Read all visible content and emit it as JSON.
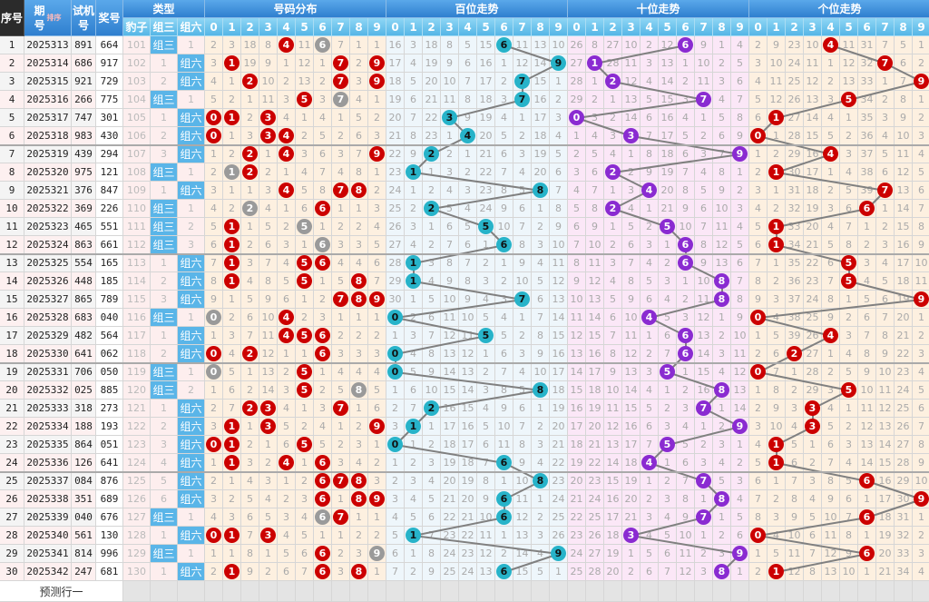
{
  "header": {
    "seq": "序号",
    "issue_top": "期",
    "issue_bottom": "号",
    "sort": "排序",
    "test_top": "试机",
    "test_bottom": "号",
    "prize": "奖号",
    "type_group": "类型",
    "type_cols": [
      "豹子",
      "组三",
      "组六"
    ],
    "sections": [
      "号码分布",
      "百位走势",
      "十位走势",
      "个位走势"
    ],
    "digits": [
      "0",
      "1",
      "2",
      "3",
      "4",
      "5",
      "6",
      "7",
      "8",
      "9"
    ]
  },
  "type_labels": {
    "zusan": "组三",
    "zuliu": "组六"
  },
  "rows": [
    {
      "seq": "1",
      "issue": "2025313",
      "test": "891",
      "prize": "664"
    },
    {
      "seq": "2",
      "issue": "2025314",
      "test": "686",
      "prize": "917"
    },
    {
      "seq": "3",
      "issue": "2025315",
      "test": "921",
      "prize": "729"
    },
    {
      "seq": "4",
      "issue": "2025316",
      "test": "266",
      "prize": "775"
    },
    {
      "seq": "5",
      "issue": "2025317",
      "test": "747",
      "prize": "301"
    },
    {
      "seq": "6",
      "issue": "2025318",
      "test": "983",
      "prize": "430"
    },
    {
      "seq": "7",
      "issue": "2025319",
      "test": "439",
      "prize": "294"
    },
    {
      "seq": "8",
      "issue": "2025320",
      "test": "975",
      "prize": "121"
    },
    {
      "seq": "9",
      "issue": "2025321",
      "test": "376",
      "prize": "847"
    },
    {
      "seq": "10",
      "issue": "2025322",
      "test": "369",
      "prize": "226"
    },
    {
      "seq": "11",
      "issue": "2025323",
      "test": "465",
      "prize": "551"
    },
    {
      "seq": "12",
      "issue": "2025324",
      "test": "863",
      "prize": "661"
    },
    {
      "seq": "13",
      "issue": "2025325",
      "test": "554",
      "prize": "165"
    },
    {
      "seq": "14",
      "issue": "2025326",
      "test": "448",
      "prize": "185"
    },
    {
      "seq": "15",
      "issue": "2025327",
      "test": "865",
      "prize": "789"
    },
    {
      "seq": "16",
      "issue": "2025328",
      "test": "683",
      "prize": "040"
    },
    {
      "seq": "17",
      "issue": "2025329",
      "test": "482",
      "prize": "564"
    },
    {
      "seq": "18",
      "issue": "2025330",
      "test": "641",
      "prize": "062"
    },
    {
      "seq": "19",
      "issue": "2025331",
      "test": "706",
      "prize": "050"
    },
    {
      "seq": "20",
      "issue": "2025332",
      "test": "025",
      "prize": "885"
    },
    {
      "seq": "21",
      "issue": "2025333",
      "test": "318",
      "prize": "273"
    },
    {
      "seq": "22",
      "issue": "2025334",
      "test": "188",
      "prize": "193"
    },
    {
      "seq": "23",
      "issue": "2025335",
      "test": "864",
      "prize": "051"
    },
    {
      "seq": "24",
      "issue": "2025336",
      "test": "126",
      "prize": "641"
    },
    {
      "seq": "25",
      "issue": "2025337",
      "test": "084",
      "prize": "876"
    },
    {
      "seq": "26",
      "issue": "2025338",
      "test": "351",
      "prize": "689"
    },
    {
      "seq": "27",
      "issue": "2025339",
      "test": "040",
      "prize": "676"
    },
    {
      "seq": "28",
      "issue": "2025340",
      "test": "561",
      "prize": "130"
    },
    {
      "seq": "29",
      "issue": "2025341",
      "test": "814",
      "prize": "996"
    },
    {
      "seq": "30",
      "issue": "2025342",
      "test": "247",
      "prize": "681"
    }
  ],
  "first_row_omissions": {
    "type": [
      101,
      0,
      1
    ],
    "distribution": [
      2,
      3,
      18,
      8,
      0,
      11,
      0,
      7,
      1,
      1
    ],
    "hundreds": [
      16,
      3,
      18,
      8,
      5,
      15,
      0,
      11,
      13,
      10
    ],
    "tens": [
      26,
      8,
      27,
      10,
      2,
      12,
      0,
      9,
      1,
      4
    ],
    "ones": [
      2,
      9,
      23,
      10,
      0,
      11,
      31,
      7,
      5,
      1
    ]
  },
  "footer": {
    "predict": "预测行一"
  },
  "colors": {
    "dist_ball": "#cc0000",
    "repeat_ball": "#9a9a9a",
    "hundreds_ball": "#27b3c9",
    "tens_ball": "#8a2bd1",
    "ones_ball": "#cc0000",
    "dist_bg": "#fdf0e0",
    "hundreds_bg": "#eef6fb",
    "tens_bg": "#fbe7f7",
    "ones_bg": "#fdf0e0",
    "line": "#808080"
  }
}
